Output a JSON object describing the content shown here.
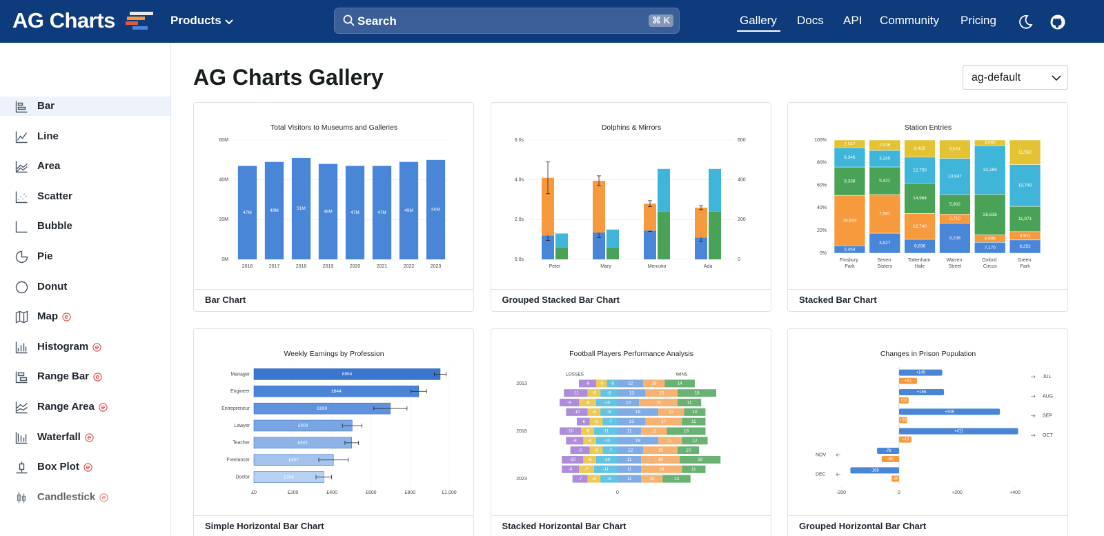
{
  "header": {
    "logo": "AG Charts",
    "products": "Products",
    "search": "Search",
    "shortcut": "⌘ K",
    "nav": [
      "Gallery",
      "Docs",
      "API",
      "Community",
      "Pricing"
    ],
    "active": 0
  },
  "sidebar": {
    "active": 0,
    "items": [
      {
        "label": "Bar",
        "enterprise": false
      },
      {
        "label": "Line",
        "enterprise": false
      },
      {
        "label": "Area",
        "enterprise": false
      },
      {
        "label": "Scatter",
        "enterprise": false
      },
      {
        "label": "Bubble",
        "enterprise": false
      },
      {
        "label": "Pie",
        "enterprise": false
      },
      {
        "label": "Donut",
        "enterprise": false
      },
      {
        "label": "Map",
        "enterprise": true
      },
      {
        "label": "Histogram",
        "enterprise": true
      },
      {
        "label": "Range Bar",
        "enterprise": true
      },
      {
        "label": "Range Area",
        "enterprise": true
      },
      {
        "label": "Waterfall",
        "enterprise": true
      },
      {
        "label": "Box Plot",
        "enterprise": true
      },
      {
        "label": "Candlestick",
        "enterprise": true
      }
    ]
  },
  "gallery": {
    "title": "AG Charts Gallery",
    "theme": "ag-default",
    "cards": [
      "Bar Chart",
      "Grouped Stacked Bar Chart",
      "Stacked Bar Chart",
      "Simple Horizontal Bar Chart",
      "Stacked Horizontal Bar Chart",
      "Grouped Horizontal Bar Chart"
    ]
  },
  "chart_data": [
    {
      "type": "column",
      "title": "Total Visitors to Museums and Galleries",
      "categories": [
        "2016",
        "2017",
        "2018",
        "2019",
        "2020",
        "2021",
        "2022",
        "2023"
      ],
      "values": [
        47000000,
        49000000,
        51000000,
        48000000,
        47000000,
        47000000,
        49000000,
        50000000
      ],
      "value_labels": [
        "47M",
        "49M",
        "51M",
        "48M",
        "47M",
        "47M",
        "49M",
        "50M"
      ],
      "color": "#4a86d8",
      "ylim": [
        0,
        60000000
      ],
      "yticks": [
        {
          "value": 0,
          "label": "0M"
        },
        {
          "value": 20000000,
          "label": "20M"
        },
        {
          "value": 40000000,
          "label": "40M"
        },
        {
          "value": 60000000,
          "label": "60M"
        }
      ],
      "grid": true
    },
    {
      "type": "dualcolumn",
      "title": "Dolphins & Mirrors",
      "categories": [
        "Peter",
        "Mary",
        "Mercutio",
        "Ada"
      ],
      "series": [
        {
          "color": "#4a86d8",
          "stack": 0,
          "values": [
            1.2,
            1.35,
            1.45,
            1.1
          ],
          "errors": [
            0.25,
            0.25,
            0.05,
            0.2
          ]
        },
        {
          "color": "#f79a3e",
          "stack": 0,
          "values": [
            2.9,
            2.6,
            1.35,
            1.5
          ],
          "errors": [
            0.8,
            0.25,
            0.15,
            0.1
          ]
        },
        {
          "color": "#4aa257",
          "stack": 1,
          "axis": "y2",
          "values": [
            60,
            60,
            240,
            240
          ]
        },
        {
          "color": "#3fb5d9",
          "stack": 1,
          "axis": "y2",
          "values": [
            70,
            90,
            215,
            215
          ]
        }
      ],
      "ylim": [
        0,
        6
      ],
      "yticks": [
        {
          "value": 0,
          "label": "0.0s"
        },
        {
          "value": 2,
          "label": "2.0s"
        },
        {
          "value": 4,
          "label": "4.0s"
        },
        {
          "value": 6,
          "label": "6.0s"
        }
      ],
      "y2lim": [
        0,
        600
      ],
      "y2ticks": [
        0,
        200,
        400,
        600
      ],
      "grid": true
    },
    {
      "type": "stackedcolumn",
      "title": "Station Entries",
      "normalized": true,
      "categories": [
        "Finsbury Park",
        "Seven Sisters",
        "Tottenham Hale",
        "Warren Street",
        "Oxford Circus",
        "Green Park"
      ],
      "series": [
        {
          "color": "#4a86d8",
          "values": [
            2454,
            3927,
            6836,
            9108,
            7170,
            6252
          ],
          "value_labels": [
            "2,454",
            "3,927",
            "6,836",
            "9,108",
            "7,170",
            "6,252"
          ]
        },
        {
          "color": "#f79a3e",
          "values": [
            16644,
            7581,
            12740,
            2710,
            4996,
            3911
          ],
          "value_labels": [
            "16,644",
            "7,581",
            "12,740",
            "2,710",
            "4,996",
            "3,911"
          ]
        },
        {
          "color": "#4aa257",
          "values": [
            9338,
            5421,
            14964,
            5902,
            26616,
            11971
          ],
          "value_labels": [
            "9,338",
            "5,421",
            "14,964",
            "5,902",
            "26,616",
            "11,971"
          ]
        },
        {
          "color": "#3fb5d9",
          "values": [
            6346,
            3245,
            12750,
            10947,
            32269,
            19749
          ],
          "value_labels": [
            "6,346",
            "3,245",
            "12,750",
            "10,947",
            "32,269",
            "19,749"
          ]
        },
        {
          "color": "#e3c233",
          "values": [
            2547,
            2036,
            8428,
            5574,
            3665,
            11582
          ],
          "value_labels": [
            "2,547",
            "2,036",
            "8,428",
            "5,574",
            "3,665",
            "11,582"
          ]
        }
      ],
      "ylim": [
        0,
        100
      ],
      "yticks": [
        {
          "value": 0,
          "label": "0%"
        },
        {
          "value": 20,
          "label": "20%"
        },
        {
          "value": 40,
          "label": "40%"
        },
        {
          "value": 60,
          "label": "60%"
        },
        {
          "value": 80,
          "label": "80%"
        },
        {
          "value": 100,
          "label": "100%"
        }
      ],
      "grid": true
    },
    {
      "type": "bar",
      "title": "Weekly Earnings by Profession",
      "categories": [
        "Manager",
        "Engineer",
        "Entrepreneur",
        "Lawyer",
        "Teacher",
        "Freelancer",
        "Doctor"
      ],
      "values": [
        954,
        844,
        699,
        503,
        501,
        407,
        358
      ],
      "value_labels": [
        "£954",
        "£844",
        "£699",
        "£503",
        "£501",
        "£407",
        "£358"
      ],
      "errors": [
        30,
        40,
        85,
        50,
        35,
        75,
        40
      ],
      "colors": [
        "#3a76cf",
        "#4c84d6",
        "#5f93dd",
        "#78a6e4",
        "#8cb4e9",
        "#a3c3ee",
        "#b6d1f2"
      ],
      "xlim": [
        0,
        1000
      ],
      "xticks": [
        {
          "value": 0,
          "label": "£0"
        },
        {
          "value": 200,
          "label": "£200"
        },
        {
          "value": 400,
          "label": "£400"
        },
        {
          "value": 600,
          "label": "£600"
        },
        {
          "value": 800,
          "label": "£800"
        },
        {
          "value": 1000,
          "label": "£1,000"
        }
      ],
      "grid": true
    },
    {
      "type": "diverging",
      "title": "Football Players Performance Analysis",
      "left_label": "LOSSES",
      "right_label": "WINS",
      "categories": [
        "2013",
        null,
        null,
        null,
        null,
        "2018",
        null,
        null,
        null,
        null,
        "2023"
      ],
      "series": [
        {
          "color": "#46b9dd",
          "values": [
            -5,
            -8,
            -10,
            -8,
            -7,
            -11,
            -10,
            -7,
            -10,
            -11,
            -8
          ]
        },
        {
          "color": "#e7c13a",
          "values": [
            -5,
            -6,
            -8,
            -6,
            -6,
            -6,
            -6,
            -6,
            -6,
            -7,
            -6
          ]
        },
        {
          "color": "#9f78d4",
          "values": [
            -8,
            -11,
            -9,
            -10,
            -6,
            -10,
            -8,
            -9,
            -10,
            -8,
            -7
          ]
        },
        {
          "color": "#6a9de0",
          "values": [
            12,
            13,
            10,
            19,
            13,
            11,
            19,
            12,
            11,
            11,
            11
          ]
        },
        {
          "color": "#f5a459",
          "values": [
            10,
            15,
            18,
            12,
            17,
            12,
            11,
            16,
            18,
            19,
            10
          ]
        },
        {
          "color": "#4fa55c",
          "values": [
            14,
            18,
            11,
            10,
            11,
            18,
            12,
            10,
            19,
            11,
            13
          ]
        }
      ],
      "xlim": [
        -55,
        55
      ],
      "xticks": [
        0
      ]
    },
    {
      "type": "groupedbar",
      "title": "Changes in Prison Population",
      "categories": [
        "JUL",
        "AUG",
        "SEP",
        "OCT",
        "NOV",
        "DEC"
      ],
      "series": [
        {
          "color": "#4a86d8",
          "values": [
            149,
            155,
            348,
            411,
            -76,
            -168
          ],
          "value_labels": [
            "+149",
            "+155",
            "+348",
            "+411",
            "-76",
            "-168"
          ]
        },
        {
          "color": "#f79a3e",
          "values": [
            62,
            33,
            28,
            43,
            -60,
            -26
          ],
          "value_labels": [
            "+62",
            "+33",
            "+28",
            "+43",
            "-60",
            "-26"
          ]
        }
      ],
      "xlim": [
        -200,
        450
      ],
      "xticks": [
        -200,
        0,
        {
          "value": 200,
          "label": "+200"
        },
        {
          "value": 400,
          "label": "+400"
        }
      ]
    }
  ]
}
